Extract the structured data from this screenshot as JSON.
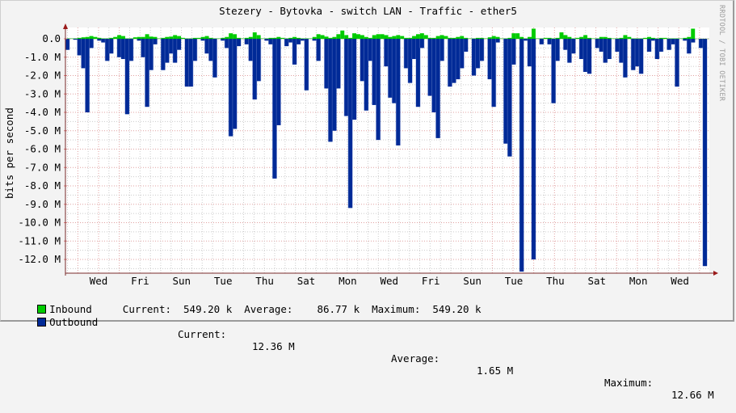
{
  "title": "Stezery - Bytovka - switch LAN - Traffic - ether5",
  "vertical_label": "bits per second",
  "watermark": "RRDTOOL / TOBI OETIKER",
  "colors": {
    "inbound": "#00cc00",
    "outbound": "#002a97",
    "outbound_edge": "#7788cc",
    "major_grid": "#e0a0a0",
    "minor_grid": "#cccccc",
    "axis": "#7a2a2a",
    "background": "#f3f3f3",
    "canvas": "#ffffff"
  },
  "legend": {
    "inbound": {
      "label": "Inbound",
      "current_label": "Current:",
      "current": "549.20 k",
      "average_label": "Average:",
      "average": "86.77 k",
      "maximum_label": "Maximum:",
      "maximum": "549.20 k"
    },
    "outbound": {
      "label": "Outbound",
      "current_label": "Current:",
      "current": "12.36 M",
      "average_label": "Average:",
      "average": "1.65 M",
      "maximum_label": "Maximum:",
      "maximum": "12.66 M"
    }
  },
  "chart_data": {
    "type": "area",
    "title": "Stezery - Bytovka - switch LAN - Traffic - ether5",
    "xlabel": "",
    "ylabel": "bits per second",
    "ylim": [
      -12.66,
      0.6
    ],
    "y_ticks": [
      "0.0",
      "-1.0 M",
      "-2.0 M",
      "-3.0 M",
      "-4.0 M",
      "-5.0 M",
      "-6.0 M",
      "-7.0 M",
      "-8.0 M",
      "-9.0 M",
      "-10.0 M",
      "-11.0 M",
      "-12.0 M"
    ],
    "x_ticks": [
      "Wed",
      "Fri",
      "Sun",
      "Tue",
      "Thu",
      "Sat",
      "Mon",
      "Wed",
      "Fri",
      "Sun",
      "Tue",
      "Thu",
      "Sat",
      "Mon",
      "Wed"
    ],
    "grid": true,
    "legend_position": "bottom",
    "x_unit": "days (approx. 31 days shown, each sample ~ 1/8 day)",
    "series": [
      {
        "name": "Inbound",
        "unit": "M bits/s",
        "values": [
          0.02,
          0.02,
          0.02,
          0.05,
          0.08,
          0.1,
          0.15,
          0.1,
          0.05,
          0.02,
          0.02,
          0.05,
          0.1,
          0.2,
          0.15,
          0.02,
          0.02,
          0.08,
          0.1,
          0.1,
          0.25,
          0.12,
          0.1,
          0.02,
          0.05,
          0.1,
          0.12,
          0.2,
          0.15,
          0.05,
          0.02,
          0.02,
          0.05,
          0.05,
          0.1,
          0.15,
          0.05,
          0.02,
          0.02,
          0.05,
          0.1,
          0.3,
          0.25,
          0.05,
          0.02,
          0.05,
          0.1,
          0.35,
          0.2,
          0.02,
          0.02,
          0.05,
          0.05,
          0.1,
          0.05,
          0.02,
          0.05,
          0.1,
          0.05,
          0.02,
          0.02,
          0.02,
          0.1,
          0.25,
          0.2,
          0.12,
          0.05,
          0.1,
          0.25,
          0.45,
          0.2,
          0.05,
          0.3,
          0.25,
          0.2,
          0.1,
          0.05,
          0.2,
          0.25,
          0.25,
          0.2,
          0.1,
          0.15,
          0.2,
          0.15,
          0.05,
          0.05,
          0.15,
          0.25,
          0.3,
          0.2,
          0.05,
          0.05,
          0.15,
          0.2,
          0.15,
          0.05,
          0.05,
          0.1,
          0.15,
          0.05,
          0.02,
          0.02,
          0.05,
          0.05,
          0.02,
          0.08,
          0.15,
          0.1,
          0.02,
          0.02,
          0.05,
          0.3,
          0.3,
          0.1,
          0.02,
          0.1,
          0.55,
          0.02,
          0.02,
          0.05,
          0.05,
          0.02,
          0.05,
          0.35,
          0.2,
          0.1,
          0.02,
          0.05,
          0.1,
          0.2,
          0.05,
          0.02,
          0.02,
          0.1,
          0.1,
          0.05,
          0.02,
          0.02,
          0.05,
          0.2,
          0.1,
          0.02,
          0.02,
          0.02,
          0.05,
          0.1,
          0.05,
          0.02,
          0.05,
          0.05,
          0.02,
          0.02,
          0.02,
          0.02,
          0.05,
          0.1,
          0.55
        ]
      },
      {
        "name": "Outbound",
        "unit": "M bits/s",
        "values": [
          -0.6,
          0,
          -0.05,
          -0.9,
          -1.6,
          -4.0,
          -0.5,
          0,
          -0.1,
          -0.2,
          -1.2,
          -0.8,
          0,
          -1.0,
          -1.1,
          -4.1,
          -1.2,
          0,
          -0.1,
          -1.0,
          -3.7,
          -1.7,
          -0.3,
          0,
          -1.7,
          -1.3,
          -0.8,
          -1.3,
          -0.6,
          0,
          -2.6,
          -2.6,
          -1.2,
          0,
          -0.1,
          -0.8,
          -1.2,
          -2.1,
          0,
          -0.1,
          -0.5,
          -5.3,
          -4.9,
          -0.4,
          0,
          -0.3,
          -1.2,
          -3.3,
          -2.3,
          0,
          -0.1,
          -0.3,
          -7.6,
          -4.7,
          0,
          -0.4,
          -0.2,
          -1.4,
          -0.3,
          -0.1,
          -2.8,
          0,
          -0.1,
          -1.2,
          0,
          -2.7,
          -5.6,
          -5.0,
          -2.7,
          0,
          -4.2,
          -9.2,
          -4.4,
          0,
          -2.3,
          -3.9,
          -1.2,
          -3.6,
          -5.5,
          0,
          -1.5,
          -3.2,
          -3.5,
          -5.8,
          0,
          -1.6,
          -2.4,
          -1.1,
          -3.7,
          -0.5,
          0,
          -3.1,
          -4.0,
          -5.4,
          -1.2,
          0,
          -2.6,
          -2.4,
          -2.2,
          -1.6,
          -0.7,
          0,
          -2.0,
          -1.6,
          -1.2,
          0,
          -2.2,
          -3.7,
          -0.2,
          0,
          -5.7,
          -6.4,
          -1.4,
          0,
          -12.66,
          -0.1,
          -1.5,
          -12.0,
          0,
          -0.3,
          0,
          -0.3,
          -3.5,
          -1.2,
          0,
          -0.6,
          -1.3,
          -0.8,
          0,
          -1.1,
          -1.8,
          -1.9,
          0,
          -0.5,
          -0.7,
          -1.3,
          -1.1,
          0,
          -0.7,
          -1.3,
          -2.1,
          0,
          -1.7,
          -1.5,
          -1.9,
          0,
          -0.7,
          -0.1,
          -1.1,
          -0.7,
          0,
          -0.6,
          -0.3,
          -2.6,
          0,
          -0.1,
          -0.8,
          -0.2,
          0,
          -0.5,
          -12.36
        ]
      }
    ]
  }
}
